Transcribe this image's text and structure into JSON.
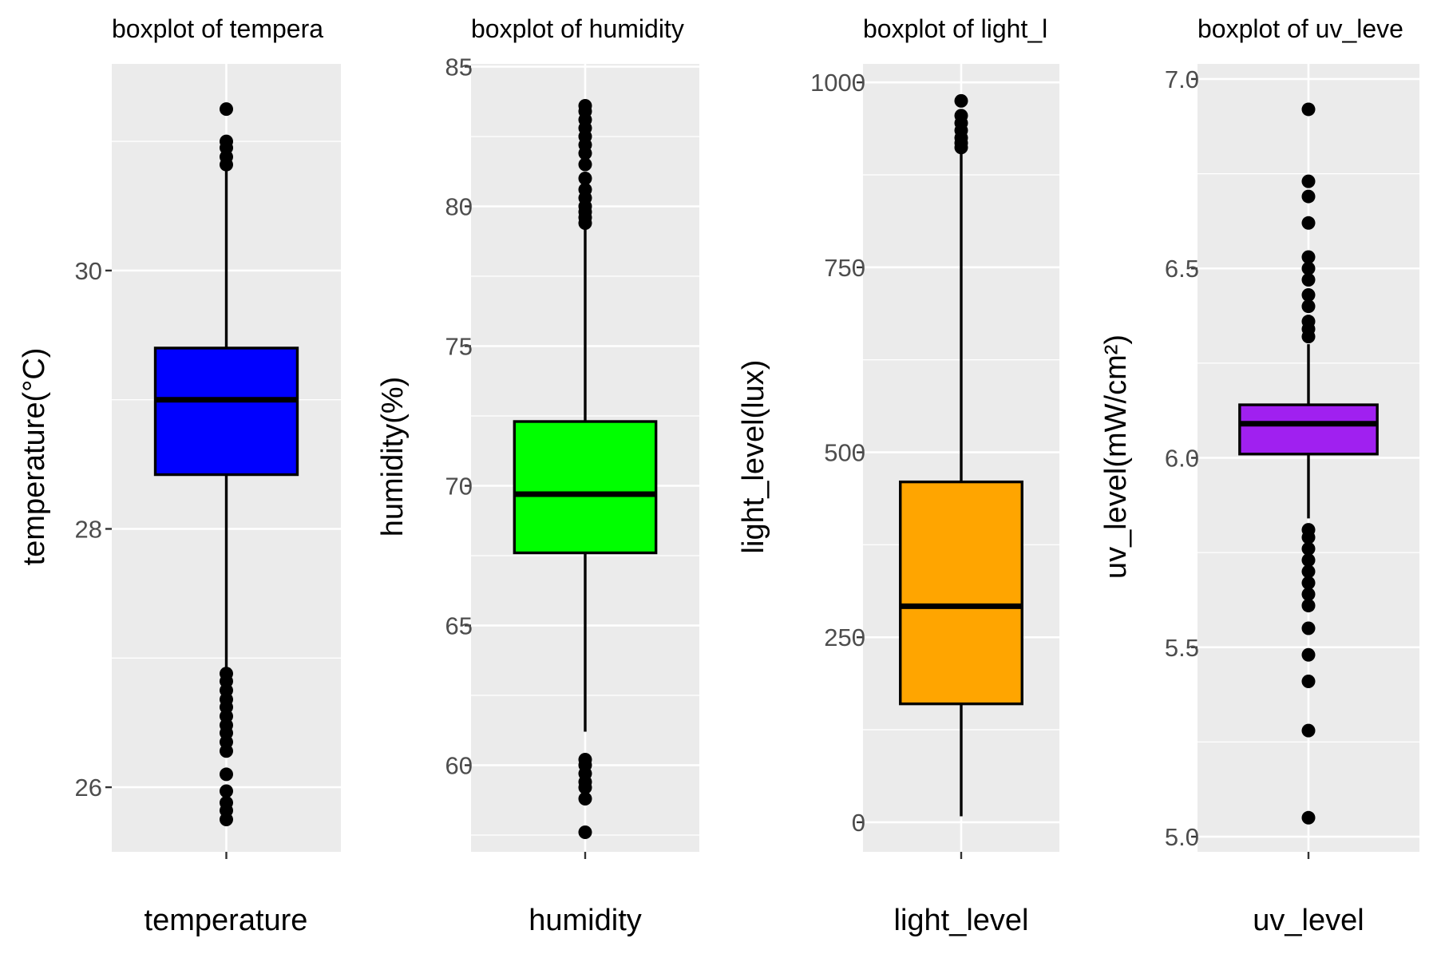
{
  "chart_data": [
    {
      "type": "boxplot",
      "title": "boxplot of tempera",
      "xlabel": "temperature",
      "ylabel": "temperature(°C)",
      "category": "temperature",
      "fill": "#0000ff",
      "ylim": [
        25.5,
        31.6
      ],
      "yticks": [
        26,
        28,
        30
      ],
      "minor_yticks": [
        27,
        29,
        31
      ],
      "box": {
        "q1": 28.42,
        "median": 29.0,
        "q3": 29.4,
        "whisker_low": 26.92,
        "whisker_high": 30.92
      },
      "outliers": [
        31.25,
        31.0,
        30.95,
        30.88,
        30.82,
        26.88,
        26.82,
        26.75,
        26.68,
        26.62,
        26.55,
        26.48,
        26.42,
        26.35,
        26.28,
        26.1,
        25.97,
        25.88,
        25.82,
        25.75
      ]
    },
    {
      "type": "boxplot",
      "title": "boxplot of humidity",
      "xlabel": "humidity",
      "ylabel": "humidity(%)",
      "category": "humidity",
      "fill": "#00ff00",
      "ylim": [
        56.9,
        85.1
      ],
      "yticks": [
        60,
        65,
        70,
        75,
        80,
        85
      ],
      "minor_yticks": [
        57.5,
        62.5,
        67.5,
        72.5,
        77.5,
        82.5
      ],
      "box": {
        "q1": 67.6,
        "median": 69.7,
        "q3": 72.3,
        "whisker_low": 61.2,
        "whisker_high": 79.3
      },
      "outliers": [
        83.6,
        83.4,
        83.1,
        82.8,
        82.5,
        82.2,
        81.9,
        81.5,
        81.0,
        80.6,
        80.3,
        80.0,
        79.8,
        79.6,
        79.4,
        60.2,
        60.0,
        59.7,
        59.4,
        59.2,
        58.8,
        57.6
      ]
    },
    {
      "type": "boxplot",
      "title": "boxplot of light_l",
      "xlabel": "light_level",
      "ylabel": "light_level(lux)",
      "category": "light_level",
      "fill": "#ffa500",
      "ylim": [
        -40,
        1025
      ],
      "yticks": [
        0,
        250,
        500,
        750,
        1000
      ],
      "minor_yticks": [
        125,
        375,
        625,
        875
      ],
      "box": {
        "q1": 160,
        "median": 292,
        "q3": 460,
        "whisker_low": 8,
        "whisker_high": 908
      },
      "outliers": [
        975,
        955,
        945,
        935,
        925,
        918,
        912
      ]
    },
    {
      "type": "boxplot",
      "title": "boxplot of uv_leve",
      "xlabel": "uv_level",
      "ylabel": "uv_level(mW/cm²)",
      "category": "uv_level",
      "fill": "#a020f0",
      "ylim": [
        4.96,
        7.04
      ],
      "yticks": [
        5.0,
        5.5,
        6.0,
        6.5,
        7.0
      ],
      "minor_yticks": [
        5.25,
        5.75,
        6.25,
        6.75
      ],
      "box": {
        "q1": 6.01,
        "median": 6.09,
        "q3": 6.14,
        "whisker_low": 5.84,
        "whisker_high": 6.3
      },
      "outliers": [
        6.92,
        6.73,
        6.69,
        6.62,
        6.53,
        6.5,
        6.47,
        6.43,
        6.4,
        6.36,
        6.34,
        6.32,
        5.81,
        5.79,
        5.76,
        5.73,
        5.7,
        5.67,
        5.64,
        5.61,
        5.55,
        5.48,
        5.41,
        5.28,
        5.05
      ]
    }
  ]
}
